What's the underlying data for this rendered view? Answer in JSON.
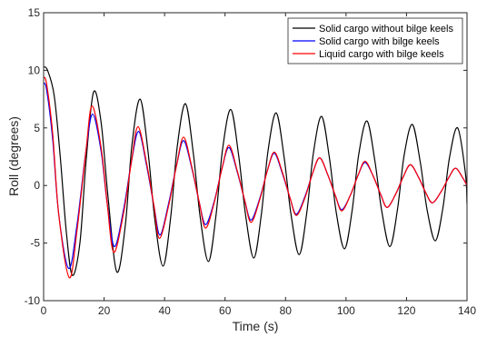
{
  "chart_data": {
    "type": "line",
    "xlabel": "Time (s)",
    "ylabel": "Roll (degrees)",
    "xlim": [
      0,
      140
    ],
    "ylim": [
      -10,
      15
    ],
    "xticks": [
      0,
      20,
      40,
      60,
      80,
      100,
      120,
      140
    ],
    "yticks": [
      -10,
      -5,
      0,
      5,
      10,
      15
    ],
    "grid": false,
    "legend_position": "top-right",
    "series": [
      {
        "name": "Solid cargo without bilge keels",
        "color": "#000000",
        "x": [
          0,
          1.3,
          3.5,
          5.5,
          7.5,
          9.5,
          12,
          14,
          16.5,
          19,
          21.3,
          24.2,
          27,
          29.2,
          31.9,
          34.5,
          36.8,
          39.5,
          42,
          44.2,
          46.9,
          49.5,
          51.8,
          54.5,
          57,
          59.2,
          61.9,
          64.5,
          66.8,
          69.5,
          72,
          74.2,
          76.9,
          79.5,
          81.8,
          84.5,
          87,
          89.2,
          91.9,
          94.5,
          96.8,
          99.5,
          102,
          104.2,
          106.9,
          109.5,
          111.8,
          114.5,
          117,
          119.2,
          121.9,
          124.5,
          126.8,
          129.5,
          132,
          134.2,
          136.9,
          139.5,
          140
        ],
        "y": [
          10.3,
          10.0,
          7.8,
          2.5,
          -4.0,
          -7.8,
          -5.0,
          2.0,
          8.1,
          5.5,
          -1.0,
          -7.5,
          -3.5,
          3.5,
          7.5,
          3.0,
          -3.0,
          -7.0,
          -2.8,
          3.4,
          7.1,
          2.8,
          -2.8,
          -6.6,
          -2.6,
          3.2,
          6.6,
          2.6,
          -2.6,
          -6.3,
          -2.5,
          3.0,
          6.3,
          2.5,
          -2.5,
          -6.0,
          -2.4,
          2.8,
          6.0,
          2.4,
          -2.4,
          -5.5,
          -2.2,
          2.7,
          5.6,
          2.2,
          -2.2,
          -5.3,
          -2.1,
          2.6,
          5.3,
          2.1,
          -2.1,
          -4.8,
          -2.0,
          2.4,
          5.0,
          1.0,
          -1.6
        ]
      },
      {
        "name": "Solid cargo with bilge keels",
        "color": "#0000ff",
        "x": [
          0,
          1,
          3,
          5,
          8.3,
          11,
          14,
          16.2,
          19,
          21,
          23.4,
          26.5,
          29,
          31.4,
          34,
          36.5,
          38.5,
          41.3,
          44,
          46.3,
          49,
          51.5,
          53.6,
          56.5,
          59,
          61.3,
          64,
          66.5,
          68.6,
          71.5,
          74,
          76.3,
          79,
          81.5,
          83.6,
          86.5,
          89,
          91.3,
          94,
          96.5,
          98.6,
          101.5,
          104,
          106.3,
          109,
          111.5,
          113.6,
          116.5,
          119,
          121.3,
          124,
          126.5,
          128.6,
          131.5,
          134,
          136.2,
          138.5,
          140
        ],
        "y": [
          8.9,
          8.3,
          4.0,
          -2.5,
          -7.2,
          -3.5,
          3.0,
          6.2,
          3.0,
          -1.5,
          -5.3,
          -2.0,
          2.0,
          4.7,
          1.8,
          -1.8,
          -4.3,
          -1.6,
          1.8,
          3.9,
          1.5,
          -1.5,
          -3.4,
          -1.3,
          1.5,
          3.3,
          1.2,
          -1.3,
          -3.0,
          -1.1,
          1.3,
          2.8,
          1.0,
          -1.1,
          -2.5,
          -0.9,
          1.1,
          2.4,
          0.9,
          -0.9,
          -2.1,
          -0.8,
          0.9,
          2.0,
          0.8,
          -0.8,
          -1.9,
          -0.7,
          0.8,
          1.8,
          0.7,
          -0.7,
          -1.5,
          -0.5,
          0.7,
          1.5,
          0.7,
          0.0
        ]
      },
      {
        "name": "Liquid cargo with bilge keels",
        "color": "#ff0000",
        "x": [
          0,
          1,
          3,
          5,
          8.5,
          11,
          14,
          16,
          19,
          21,
          23.2,
          26.5,
          29,
          31.2,
          34,
          36.5,
          38.3,
          41.3,
          44,
          46.3,
          49,
          51.5,
          53.6,
          56.5,
          59,
          61.3,
          64,
          66.5,
          68.6,
          71.5,
          74,
          76.3,
          79,
          81.5,
          83.6,
          86.5,
          89,
          91.3,
          94,
          96.5,
          98.6,
          101.5,
          104,
          106.3,
          109,
          111.5,
          113.6,
          116.5,
          119,
          121.3,
          124,
          126.5,
          128.6,
          131.5,
          134,
          136.2,
          138.5,
          140
        ],
        "y": [
          9.4,
          8.8,
          4.5,
          -2.5,
          -8.0,
          -4.0,
          3.0,
          6.9,
          3.3,
          -1.5,
          -5.8,
          -2.3,
          2.0,
          5.1,
          2.0,
          -1.8,
          -4.6,
          -1.8,
          1.8,
          4.2,
          1.6,
          -1.5,
          -3.7,
          -1.4,
          1.5,
          3.5,
          1.3,
          -1.3,
          -3.2,
          -1.2,
          1.3,
          2.9,
          1.1,
          -1.1,
          -2.6,
          -1.0,
          1.1,
          2.4,
          0.9,
          -0.9,
          -2.2,
          -0.8,
          0.9,
          2.1,
          0.8,
          -0.8,
          -1.9,
          -0.7,
          0.8,
          1.8,
          0.7,
          -0.7,
          -1.5,
          -0.5,
          0.7,
          1.5,
          0.7,
          0.0
        ]
      }
    ]
  }
}
